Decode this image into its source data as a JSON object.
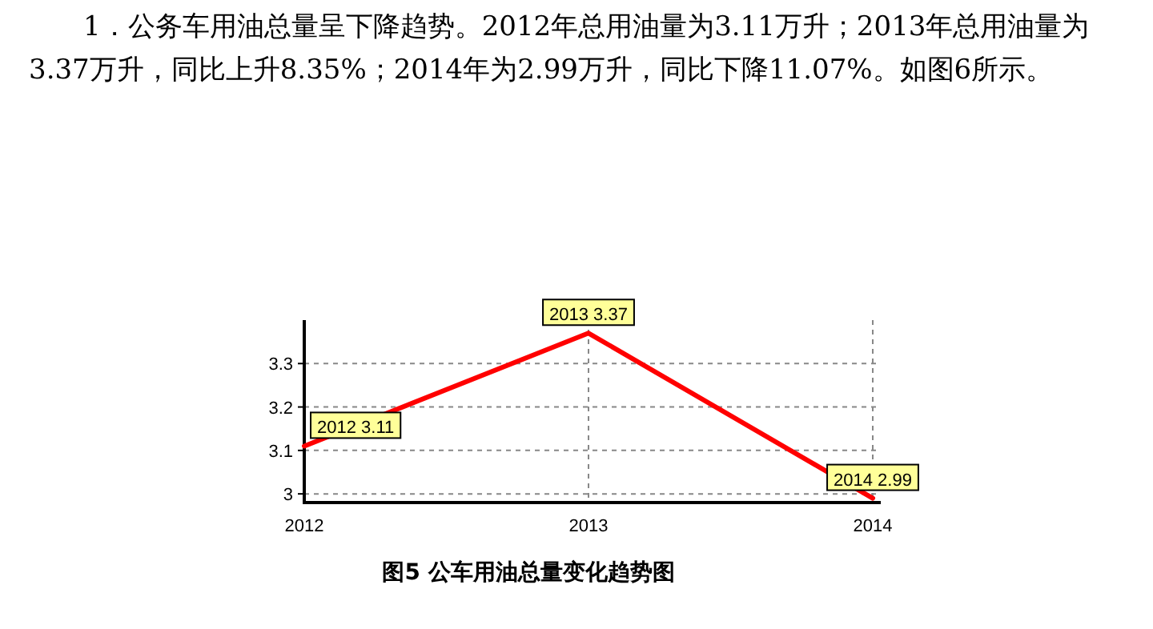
{
  "chart_data": {
    "type": "line",
    "title": "图5  公车用油总量变化趋势图",
    "annotations": [
      "1．公务车用油总量呈下降趋势。2012年总用油量为3.11万升；2013年总用油量为3.37万升，同比上升8.35%；2014年为2.99万升，同比下降11.07%。如图6所示。"
    ],
    "categories": [
      "2012",
      "2013",
      "2014"
    ],
    "series": [
      {
        "color": "#ff0000",
        "values": [
          3.11,
          3.37,
          2.99
        ],
        "value_labels": [
          "2012 3.11",
          "2013 3.37",
          "2014 2.99"
        ]
      }
    ],
    "ylim": [
      2.98,
      3.4
    ],
    "yticks": [
      3,
      3.1,
      3.2,
      3.3
    ],
    "grid": true,
    "marker": "none",
    "line_style": "solid"
  }
}
